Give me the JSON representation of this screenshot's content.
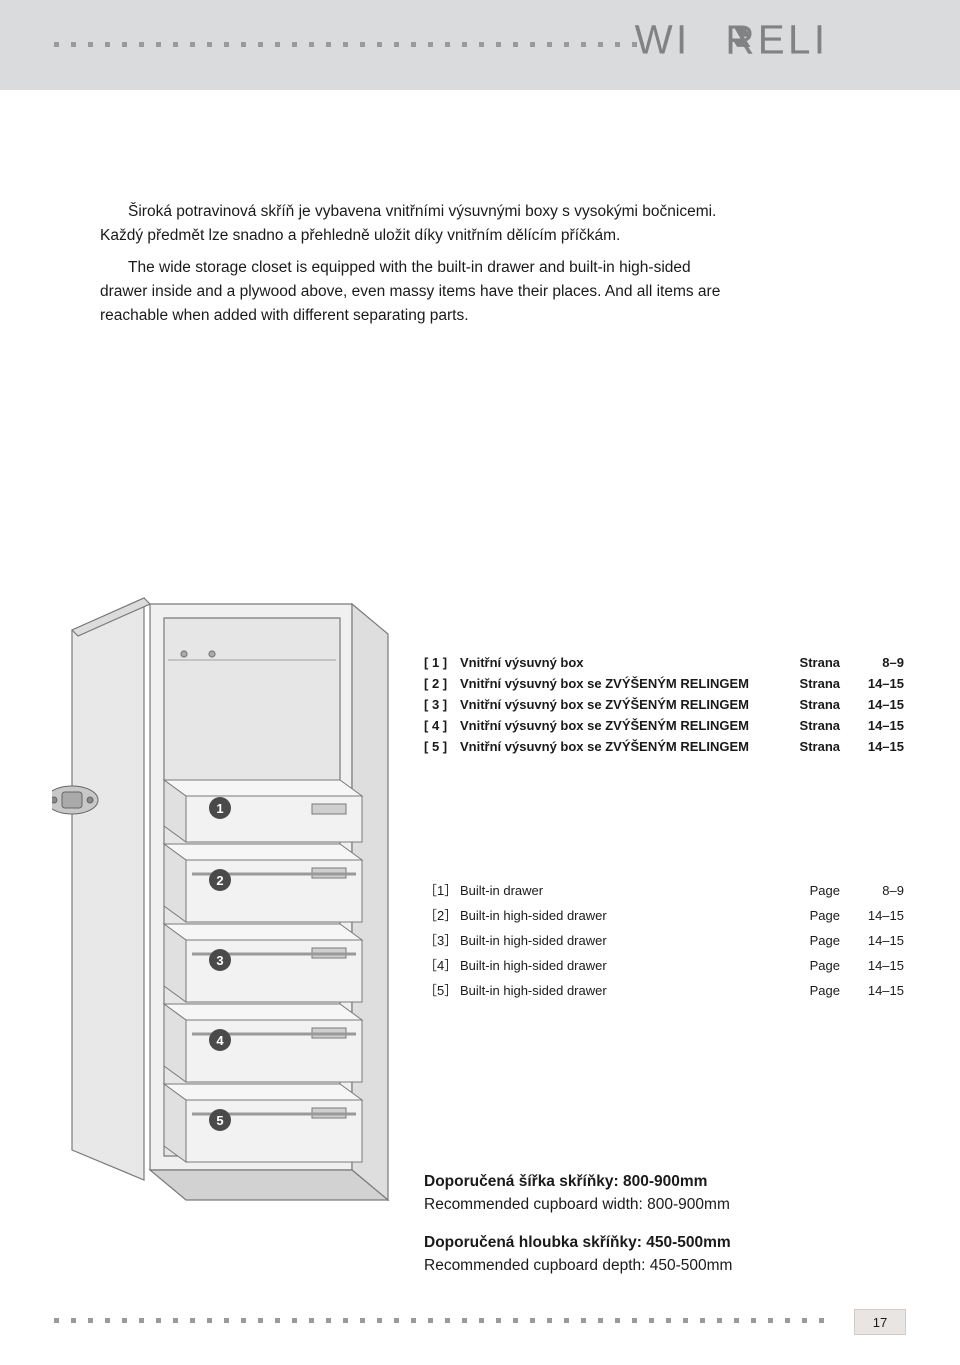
{
  "header": {
    "logo_text": "WIRELI"
  },
  "paragraphs": {
    "p1": "Široká potravinová skříň je vybavena vnitřními výsuvnými boxy s vysokými bočnicemi. Každý předmět lze snadno a přehledně uložit díky vnitřním dělícím příčkám.",
    "p2": "The wide storage closet is equipped with the built-in drawer and built-in high-sided drawer inside and a plywood above, even massy items have their places. And all items are reachable when added with different separating parts."
  },
  "table_cz": {
    "rows": [
      {
        "idx": "[ 1 ]",
        "label": "Vnitřní  výsuvný box",
        "pg": "Strana",
        "num": "8–9"
      },
      {
        "idx": "[ 2 ]",
        "label": "Vnitřní výsuvný box se ZVÝŠENÝM RELINGEM",
        "pg": "Strana",
        "num": "14–15"
      },
      {
        "idx": "[ 3 ]",
        "label": "Vnitřní výsuvný box se ZVÝŠENÝM RELINGEM",
        "pg": "Strana",
        "num": "14–15"
      },
      {
        "idx": "[ 4 ]",
        "label": "Vnitřní výsuvný box se ZVÝŠENÝM RELINGEM",
        "pg": "Strana",
        "num": "14–15"
      },
      {
        "idx": "[ 5 ]",
        "label": "Vnitřní výsuvný box se ZVÝŠENÝM RELINGEM",
        "pg": "Strana",
        "num": "14–15"
      }
    ],
    "styling": {
      "font_weight": "700",
      "font_size": 13
    }
  },
  "table_en": {
    "rows": [
      {
        "idx": "［1］",
        "label": "Built-in drawer",
        "pg": "Page",
        "num": "8–9"
      },
      {
        "idx": "［2］",
        "label": "Built-in high-sided drawer",
        "pg": "Page",
        "num": "14–15"
      },
      {
        "idx": "［3］",
        "label": "Built-in high-sided drawer",
        "pg": "Page",
        "num": "14–15"
      },
      {
        "idx": "［4］",
        "label": "Built-in high-sided drawer",
        "pg": "Page",
        "num": "14–15"
      },
      {
        "idx": "［5］",
        "label": "Built-in high-sided drawer",
        "pg": "Page",
        "num": "14–15"
      }
    ],
    "styling": {
      "font_weight": "400",
      "font_size": 13
    }
  },
  "recommendations": {
    "width_cz": "Doporučená šířka skříňky:  800-900mm",
    "width_en": "Recommended cupboard width: 800-900mm",
    "depth_cz": "Doporučená hloubka skříňky:  450-500mm",
    "depth_en": "Recommended cupboard depth: 450-500mm"
  },
  "diagram": {
    "type": "infographic",
    "description": "tall cupboard with 5 numbered drawers",
    "cabinet_stroke": "#7a7a7a",
    "cabinet_fill": "#e8e8e8",
    "drawer_fill": "#f2f2f2",
    "badge_fill": "#4a4a4a",
    "badge_text": "#ffffff",
    "drawers": [
      1,
      2,
      3,
      4,
      5
    ]
  },
  "page_number": "17",
  "colors": {
    "page_bg": "#dadbdc",
    "content_bg": "#ffffff",
    "dot": "#9a9a9a",
    "logo": "#808284",
    "pagebox_bg": "#e9e5e2",
    "pagebox_border": "#d0cbc6"
  }
}
